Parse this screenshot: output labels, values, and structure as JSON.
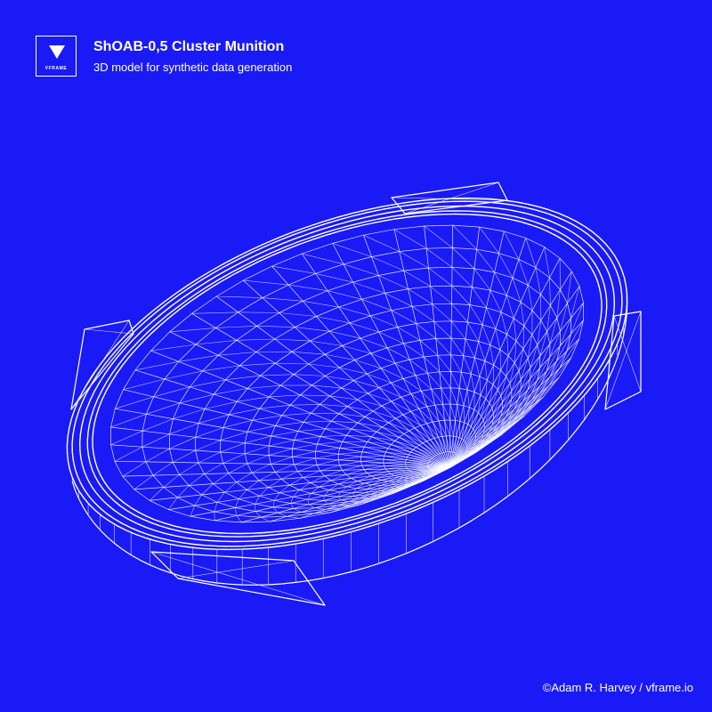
{
  "header": {
    "logo_text": "VFRAME",
    "title": "ShOAB-0,5 Cluster Munition",
    "subtitle": "3D model for synthetic data generation"
  },
  "footer": {
    "credit": "©Adam R. Harvey / vframe.io"
  },
  "colors": {
    "background": "#1A1AF6",
    "foreground": "#FFFFFF"
  },
  "icons": {
    "logo": "downward-triangle-icon"
  }
}
